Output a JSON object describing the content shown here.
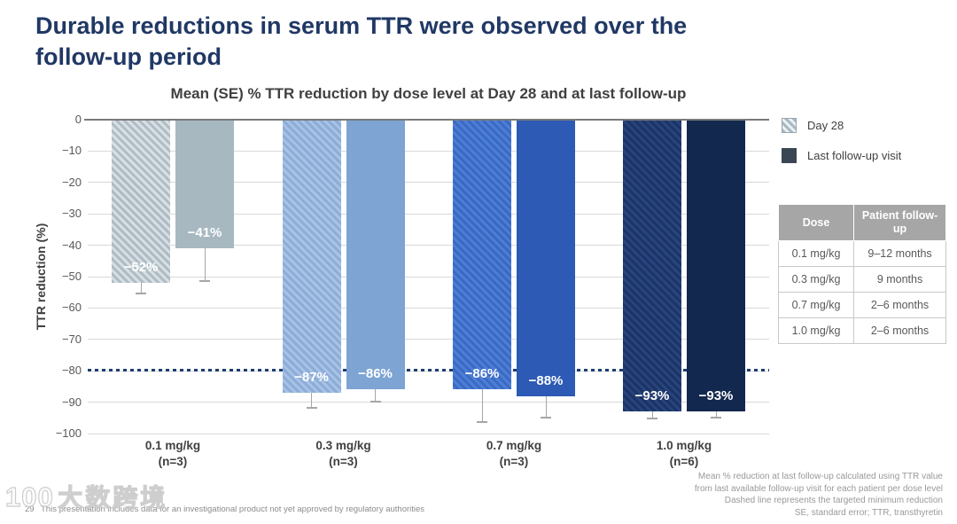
{
  "slide": {
    "title_lines": [
      "Durable reductions in serum TTR were observed over the",
      "follow-up period"
    ],
    "page_number": "29",
    "footnote_left": "This presentation includes data for an investigational product not yet approved by regulatory authorities",
    "footnotes_right": [
      "Mean % reduction at last follow-up calculated using TTR value",
      "from last available follow-up visit for each patient per dose level",
      "Dashed line represents the targeted minimum reduction",
      "SE, standard error; TTR, transthyretin"
    ],
    "watermark": {
      "logo": "100",
      "text": "大数跨境"
    }
  },
  "chart_data": {
    "type": "bar",
    "title": "Mean (SE) % TTR reduction by dose level at Day 28 and at last follow-up",
    "ylabel": "TTR reduction (%)",
    "ylim": [
      0,
      -100
    ],
    "ytick_step": 10,
    "grid": "horizontal",
    "legend_position": "top-right",
    "categories": [
      "0.1 mg/kg",
      "0.3 mg/kg",
      "0.7 mg/kg",
      "1.0 mg/kg"
    ],
    "category_sublabels": [
      "(n=3)",
      "(n=3)",
      "(n=3)",
      "(n=6)"
    ],
    "target_line": {
      "value": -80,
      "style": "dotted",
      "color": "#1c3e6e",
      "meaning": "targeted minimum reduction"
    },
    "series": [
      {
        "name": "Day 28",
        "pattern": "hatched",
        "values": [
          -52,
          -87,
          -86,
          -93
        ],
        "data_labels": [
          "−52%",
          "−87%",
          "−86%",
          "−93%"
        ],
        "error_whisker_to": [
          -55,
          -91.5,
          -96,
          -95
        ],
        "bar_colors": [
          "#aebcc5",
          "#8badd8",
          "#4d7ed7",
          "#1c3465"
        ],
        "stripe_colors": [
          "#d8dfe3",
          "#a9c2e5",
          "#3a69c2",
          "#28447e"
        ]
      },
      {
        "name": "Last follow-up visit",
        "pattern": "solid",
        "values": [
          -41,
          -86,
          -88,
          -93
        ],
        "data_labels": [
          "−41%",
          "−86%",
          "−88%",
          "−93%"
        ],
        "error_whisker_to": [
          -51,
          -89.5,
          -94.5,
          -94.5
        ],
        "bar_colors": [
          "#a7b8c1",
          "#7da4d2",
          "#2c5ab4",
          "#13284e"
        ]
      }
    ]
  },
  "legend": {
    "items": [
      {
        "label": "Day 28",
        "swatch_style": "hatched",
        "swatch_base": "#a9bac4",
        "swatch_stripe": "#edf1f3"
      },
      {
        "label": "Last follow-up visit",
        "swatch_style": "solid",
        "swatch_color": "#3a4653"
      }
    ]
  },
  "table": {
    "headers": [
      "Dose",
      "Patient follow-up"
    ],
    "rows": [
      [
        "0.1 mg/kg",
        "9–12 months"
      ],
      [
        "0.3 mg/kg",
        "9 months"
      ],
      [
        "0.7 mg/kg",
        "2–6 months"
      ],
      [
        "1.0 mg/kg",
        "2–6 months"
      ]
    ]
  }
}
